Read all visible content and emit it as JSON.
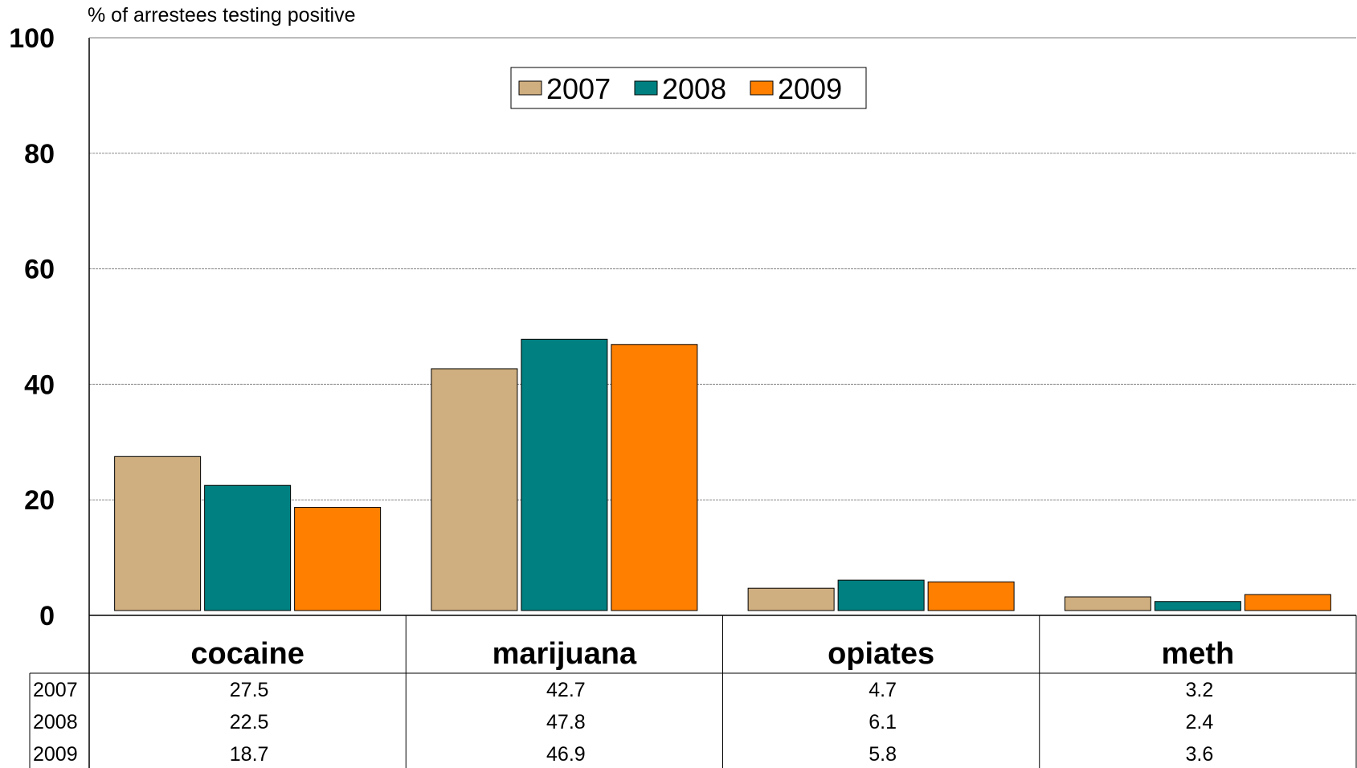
{
  "chart_data": {
    "type": "bar",
    "ylabel": "% of arrestees testing positive",
    "ylim": [
      0,
      100
    ],
    "yticks": [
      0,
      20,
      40,
      60,
      80,
      100
    ],
    "grid": true,
    "legend_position": "top-center",
    "categories": [
      "cocaine",
      "marijuana",
      "opiates",
      "meth"
    ],
    "series": [
      {
        "name": "2007",
        "color": "#CFAE7F",
        "values": [
          27.5,
          42.7,
          4.7,
          3.2
        ],
        "labels": [
          "27.5",
          "42.7",
          "4.7",
          "3.2"
        ]
      },
      {
        "name": "2008",
        "color": "#008080",
        "values": [
          22.5,
          47.8,
          6.1,
          2.4
        ],
        "labels": [
          "22.5",
          "47.8",
          "6.1",
          "2.4"
        ]
      },
      {
        "name": "2009",
        "color": "#FF8000",
        "values": [
          18.7,
          46.9,
          5.8,
          3.6
        ],
        "labels": [
          "18.7",
          "46.9",
          "5.8",
          "3.6"
        ]
      }
    ]
  }
}
